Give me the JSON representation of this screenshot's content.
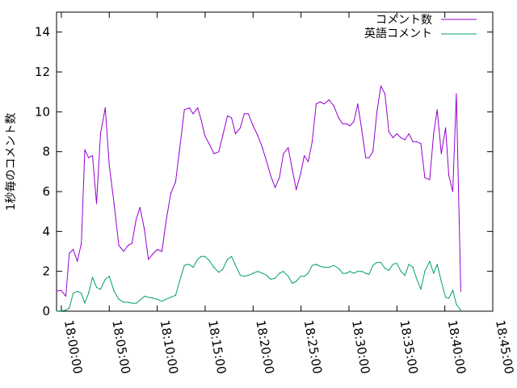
{
  "chart_data": {
    "type": "line",
    "title": "",
    "xlabel": "",
    "ylabel": "1秒毎のコメント数",
    "x_ticks": [
      "18:00:00",
      "18:05:00",
      "18:10:00",
      "18:15:00",
      "18:20:00",
      "18:25:00",
      "18:30:00",
      "18:35:00",
      "18:40:00",
      "18:45:00"
    ],
    "xlim": [
      "17:59:30",
      "18:45:00"
    ],
    "ylim": [
      0,
      15
    ],
    "y_ticks": [
      "0",
      "2",
      "4",
      "6",
      "8",
      "10",
      "12",
      "14"
    ],
    "grid": false,
    "legend_position": "top-right",
    "x": [
      "17:59:30",
      "17:59:58",
      "18:00:28",
      "18:00:50",
      "18:01:14",
      "18:01:40",
      "18:02:05",
      "18:02:27",
      "18:02:50",
      "18:03:15",
      "18:03:40",
      "18:04:05",
      "18:04:35",
      "18:05:00",
      "18:05:30",
      "18:06:00",
      "18:06:30",
      "18:06:58",
      "18:07:22",
      "18:07:48",
      "18:08:12",
      "18:08:40",
      "18:09:05",
      "18:09:35",
      "18:10:00",
      "18:10:30",
      "18:10:55",
      "18:11:25",
      "18:11:55",
      "18:12:20",
      "18:12:50",
      "18:13:20",
      "18:13:45",
      "18:14:13",
      "18:14:35",
      "18:14:58",
      "18:15:25",
      "18:15:55",
      "18:16:25",
      "18:16:50",
      "18:17:20",
      "18:17:45",
      "18:18:10",
      "18:18:40",
      "18:19:05",
      "18:19:30",
      "18:20:00",
      "18:20:30",
      "18:20:58",
      "18:21:25",
      "18:21:50",
      "18:22:18",
      "18:22:45",
      "18:23:10",
      "18:23:40",
      "18:24:05",
      "18:24:30",
      "18:24:58",
      "18:25:20",
      "18:25:45",
      "18:26:10",
      "18:26:35",
      "18:27:00",
      "18:27:25",
      "18:27:55",
      "18:28:25",
      "18:28:55",
      "18:29:20",
      "18:29:45",
      "18:30:05",
      "18:30:30",
      "18:30:55",
      "18:31:20",
      "18:31:45",
      "18:32:05",
      "18:32:30",
      "18:32:55",
      "18:33:20",
      "18:33:45",
      "18:34:10",
      "18:34:35",
      "18:35:00",
      "18:35:25",
      "18:35:50",
      "18:36:15",
      "18:36:40",
      "18:37:05",
      "18:37:30",
      "18:37:55",
      "18:38:25",
      "18:38:50",
      "18:39:12",
      "18:39:38",
      "18:40:05",
      "18:40:25",
      "18:40:50",
      "18:41:12",
      "18:41:40"
    ],
    "series": [
      {
        "name": "コメント数",
        "color": "#9400d3",
        "values": [
          1.0,
          1.05,
          0.75,
          2.9,
          3.1,
          2.5,
          3.4,
          8.1,
          7.7,
          7.8,
          5.4,
          8.9,
          10.2,
          7.3,
          5.4,
          3.3,
          3.0,
          3.3,
          3.4,
          4.6,
          5.2,
          4.1,
          2.6,
          2.9,
          3.1,
          3.0,
          4.5,
          5.9,
          6.5,
          8.1,
          10.1,
          10.2,
          9.9,
          10.2,
          9.6,
          8.8,
          8.4,
          7.9,
          8.0,
          8.8,
          9.8,
          9.7,
          8.9,
          9.2,
          9.9,
          9.9,
          9.3,
          8.8,
          8.2,
          7.5,
          6.8,
          6.2,
          6.7,
          7.9,
          8.2,
          7.1,
          6.1,
          6.9,
          7.8,
          7.5,
          8.5,
          10.4,
          10.5,
          10.4,
          10.6,
          10.3,
          9.7,
          9.4,
          9.4,
          9.3,
          9.5,
          10.4,
          9.1,
          7.7,
          7.7,
          8.0,
          10.0,
          11.3,
          10.9,
          9.0,
          8.7,
          8.9,
          8.7,
          8.6,
          8.9,
          8.5,
          8.5,
          8.4,
          6.7,
          6.6,
          8.9,
          10.1,
          7.9,
          9.2,
          6.8,
          6.0,
          10.9,
          1.0
        ]
      },
      {
        "name": "英語コメント",
        "color": "#009e73",
        "values": [
          0.0,
          0.02,
          0.05,
          0.15,
          0.9,
          1.0,
          0.9,
          0.4,
          0.9,
          1.7,
          1.2,
          1.1,
          1.6,
          1.75,
          1.0,
          0.6,
          0.45,
          0.45,
          0.4,
          0.4,
          0.55,
          0.75,
          0.7,
          0.65,
          0.6,
          0.5,
          0.6,
          0.7,
          0.8,
          1.5,
          2.3,
          2.35,
          2.2,
          2.6,
          2.75,
          2.75,
          2.55,
          2.2,
          1.95,
          2.1,
          2.6,
          2.75,
          2.3,
          1.8,
          1.75,
          1.8,
          1.9,
          2.0,
          1.9,
          1.8,
          1.6,
          1.65,
          1.9,
          2.0,
          1.75,
          1.4,
          1.5,
          1.75,
          1.75,
          1.9,
          2.3,
          2.35,
          2.25,
          2.2,
          2.2,
          2.3,
          2.15,
          1.9,
          1.9,
          2.0,
          1.9,
          2.0,
          2.0,
          1.9,
          1.85,
          2.3,
          2.45,
          2.45,
          2.15,
          2.05,
          2.35,
          2.4,
          2.0,
          1.8,
          2.35,
          2.2,
          1.6,
          1.1,
          2.0,
          2.5,
          1.9,
          2.35,
          1.5,
          0.7,
          0.65,
          1.05,
          0.35,
          0.05
        ]
      }
    ]
  }
}
